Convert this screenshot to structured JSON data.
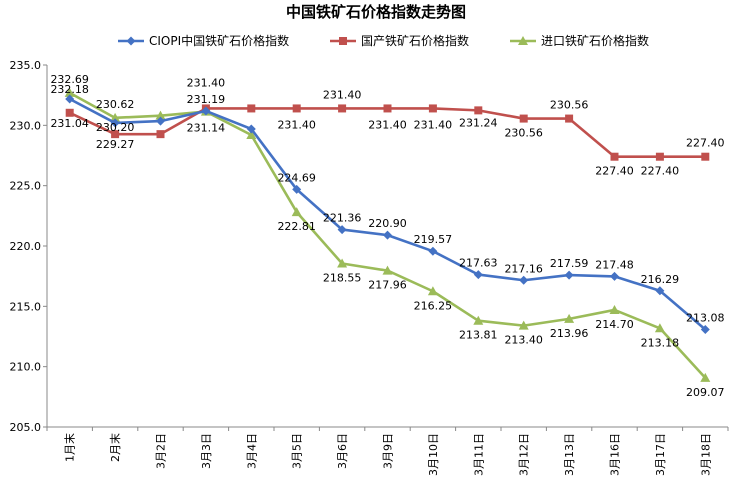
{
  "chart_data": {
    "type": "line",
    "title": "中国铁矿石价格指数走势图",
    "categories": [
      "1月末",
      "2月末",
      "3月2日",
      "3月3日",
      "3月4日",
      "3月5日",
      "3月6日",
      "3月9日",
      "3月10日",
      "3月11日",
      "3月12日",
      "3月13日",
      "3月16日",
      "3月17日",
      "3月18日"
    ],
    "ylim": [
      205.0,
      235.0
    ],
    "yticks": [
      "205.0",
      "210.0",
      "215.0",
      "220.0",
      "225.0",
      "230.0",
      "235.0"
    ],
    "grid": false,
    "legend_position": "top",
    "series": [
      {
        "name": "CIOPI中国铁矿石价格指数",
        "color": "#4472C4",
        "marker": "diamond",
        "values": [
          232.18,
          230.2,
          230.35,
          231.19,
          229.7,
          224.69,
          221.36,
          220.9,
          219.57,
          217.63,
          217.16,
          217.59,
          217.48,
          216.29,
          213.08
        ],
        "labels": [
          "232.18",
          "230.20",
          "",
          "231.19",
          "",
          "224.69",
          "221.36",
          "220.90",
          "219.57",
          "217.63",
          "217.16",
          "217.59",
          "217.48",
          "216.29",
          "213.08"
        ]
      },
      {
        "name": "国产铁矿石价格指数",
        "color": "#C0504D",
        "marker": "square",
        "values": [
          231.04,
          229.27,
          229.27,
          231.4,
          231.4,
          231.4,
          231.4,
          231.4,
          231.4,
          231.24,
          230.56,
          230.56,
          227.4,
          227.4,
          227.4
        ],
        "labels": [
          "231.04",
          "229.27",
          "",
          "231.40",
          "",
          "231.40",
          "231.40",
          "231.40",
          "231.40",
          "231.24",
          "230.56",
          "230.56",
          "227.40",
          "227.40",
          "227.40"
        ]
      },
      {
        "name": "进口铁矿石价格指数",
        "color": "#9BBB59",
        "marker": "triangle",
        "values": [
          232.69,
          230.62,
          230.8,
          231.14,
          229.2,
          222.81,
          218.55,
          217.96,
          216.25,
          213.81,
          213.4,
          213.96,
          214.7,
          213.18,
          209.07
        ],
        "labels": [
          "232.69",
          "230.62",
          "",
          "231.14",
          "",
          "222.81",
          "218.55",
          "217.96",
          "216.25",
          "213.81",
          "213.40",
          "213.96",
          "214.70",
          "213.18",
          "209.07"
        ]
      }
    ]
  }
}
